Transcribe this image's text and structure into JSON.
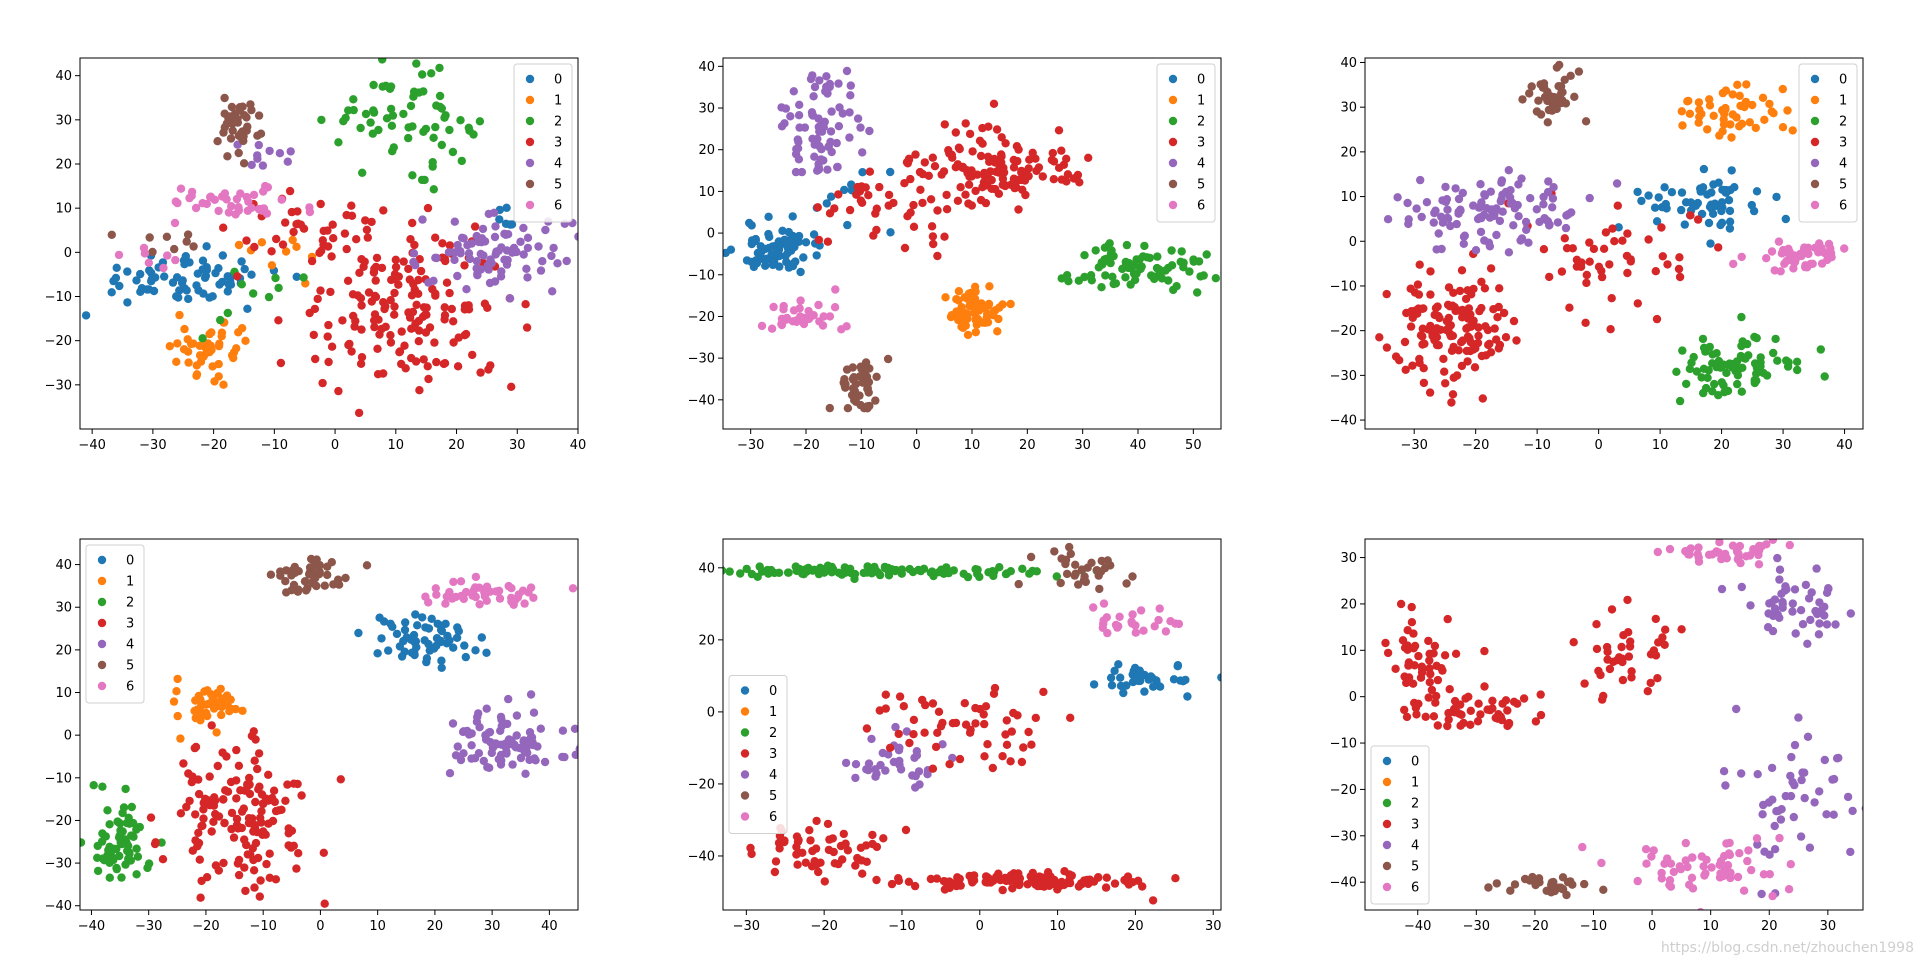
{
  "figure": {
    "colors": [
      "#1f77b4",
      "#ff7f0e",
      "#2ca02c",
      "#d62728",
      "#9467bd",
      "#8c564b",
      "#e377c2"
    ],
    "watermark": "https://blog.csdn.net/zhouchen1998"
  },
  "chart_data": [
    {
      "type": "scatter",
      "title": "",
      "legend": {
        "position": "top-right",
        "labels": [
          "0",
          "1",
          "2",
          "3",
          "4",
          "5",
          "6"
        ]
      },
      "xlim": [
        -42,
        40
      ],
      "ylim": [
        -40,
        44
      ],
      "xticks": [
        -40,
        -30,
        -20,
        -10,
        0,
        10,
        20,
        30,
        40
      ],
      "yticks": [
        -30,
        -20,
        -10,
        0,
        10,
        20,
        30,
        40
      ],
      "clusters": [
        {
          "label": "0",
          "cx": -25,
          "cy": -6,
          "sx": 8,
          "sy": 3,
          "n": 70
        },
        {
          "label": "0",
          "cx": 28,
          "cy": 8,
          "sx": 3,
          "sy": 2,
          "n": 6
        },
        {
          "label": "1",
          "cx": -20,
          "cy": -22,
          "sx": 3,
          "sy": 3,
          "n": 45
        },
        {
          "label": "1",
          "cx": -10,
          "cy": -2,
          "sx": 6,
          "sy": 6,
          "n": 10
        },
        {
          "label": "2",
          "cx": 11,
          "cy": 30,
          "sx": 6,
          "sy": 5,
          "n": 65
        },
        {
          "label": "2",
          "cx": -14,
          "cy": -8,
          "sx": 4,
          "sy": 4,
          "n": 10
        },
        {
          "label": "3",
          "cx": 12,
          "cy": -13,
          "sx": 9,
          "sy": 9,
          "n": 170
        },
        {
          "label": "3",
          "cx": -5,
          "cy": 6,
          "sx": 6,
          "sy": 5,
          "n": 35
        },
        {
          "label": "4",
          "cx": 26,
          "cy": 0,
          "sx": 6,
          "sy": 4,
          "n": 85
        },
        {
          "label": "4",
          "cx": -12,
          "cy": 22,
          "sx": 3,
          "sy": 2,
          "n": 10
        },
        {
          "label": "5",
          "cx": -16,
          "cy": 29,
          "sx": 2,
          "sy": 3,
          "n": 40
        },
        {
          "label": "5",
          "cx": -28,
          "cy": 3,
          "sx": 5,
          "sy": 3,
          "n": 8
        },
        {
          "label": "6",
          "cx": -17,
          "cy": 11,
          "sx": 6,
          "sy": 2,
          "n": 40
        },
        {
          "label": "6",
          "cx": -28,
          "cy": 1,
          "sx": 3,
          "sy": 3,
          "n": 8
        }
      ]
    },
    {
      "type": "scatter",
      "title": "",
      "legend": {
        "position": "top-right",
        "labels": [
          "0",
          "1",
          "2",
          "3",
          "4",
          "5",
          "6"
        ]
      },
      "xlim": [
        -35,
        55
      ],
      "ylim": [
        -47,
        42
      ],
      "xticks": [
        -30,
        -20,
        -10,
        0,
        10,
        20,
        30,
        40,
        50
      ],
      "yticks": [
        -40,
        -30,
        -20,
        -10,
        0,
        10,
        20,
        30,
        40
      ],
      "clusters": [
        {
          "label": "0",
          "cx": -25,
          "cy": -4,
          "sx": 4,
          "sy": 3,
          "n": 75
        },
        {
          "label": "0",
          "cx": -12,
          "cy": 8,
          "sx": 4,
          "sy": 4,
          "n": 10
        },
        {
          "label": "1",
          "cx": 11,
          "cy": -19,
          "sx": 2.5,
          "sy": 3,
          "n": 60
        },
        {
          "label": "2",
          "cx": 41,
          "cy": -8,
          "sx": 6,
          "sy": 3,
          "n": 80
        },
        {
          "label": "3",
          "cx": 14,
          "cy": 15,
          "sx": 7,
          "sy": 5,
          "n": 130
        },
        {
          "label": "3",
          "cx": -6,
          "cy": 5,
          "sx": 6,
          "sy": 6,
          "n": 40
        },
        {
          "label": "4",
          "cx": -18,
          "cy": 25,
          "sx": 4,
          "sy": 7,
          "n": 75
        },
        {
          "label": "5",
          "cx": -10,
          "cy": -36,
          "sx": 2,
          "sy": 3,
          "n": 40
        },
        {
          "label": "6",
          "cx": -20,
          "cy": -20,
          "sx": 4,
          "sy": 2,
          "n": 35
        }
      ]
    },
    {
      "type": "scatter",
      "title": "",
      "legend": {
        "position": "top-right",
        "labels": [
          "0",
          "1",
          "2",
          "3",
          "4",
          "5",
          "6"
        ]
      },
      "xlim": [
        -38,
        43
      ],
      "ylim": [
        -42,
        41
      ],
      "xticks": [
        -30,
        -20,
        -10,
        0,
        10,
        20,
        30,
        40
      ],
      "yticks": [
        -40,
        -30,
        -20,
        -10,
        0,
        10,
        20,
        30,
        40
      ],
      "clusters": [
        {
          "label": "0",
          "cx": 16,
          "cy": 8,
          "sx": 5,
          "sy": 3,
          "n": 60
        },
        {
          "label": "1",
          "cx": 21,
          "cy": 29,
          "sx": 4,
          "sy": 3,
          "n": 50
        },
        {
          "label": "2",
          "cx": 22,
          "cy": -29,
          "sx": 5,
          "sy": 4,
          "n": 80
        },
        {
          "label": "3",
          "cx": -24,
          "cy": -20,
          "sx": 5,
          "sy": 7,
          "n": 140
        },
        {
          "label": "3",
          "cx": 0,
          "cy": -2,
          "sx": 9,
          "sy": 8,
          "n": 50
        },
        {
          "label": "4",
          "cx": -18,
          "cy": 7,
          "sx": 8,
          "sy": 4,
          "n": 110
        },
        {
          "label": "5",
          "cx": -7,
          "cy": 33,
          "sx": 2.5,
          "sy": 3,
          "n": 40
        },
        {
          "label": "6",
          "cx": 32,
          "cy": -3,
          "sx": 4,
          "sy": 1.5,
          "n": 50
        }
      ]
    },
    {
      "type": "scatter",
      "title": "",
      "legend": {
        "position": "top-left",
        "labels": [
          "0",
          "1",
          "2",
          "3",
          "4",
          "5",
          "6"
        ]
      },
      "xlim": [
        -42,
        45
      ],
      "ylim": [
        -41,
        46
      ],
      "xticks": [
        -40,
        -30,
        -20,
        -10,
        0,
        10,
        20,
        30,
        40
      ],
      "yticks": [
        -40,
        -30,
        -20,
        -10,
        0,
        10,
        20,
        30,
        40
      ],
      "clusters": [
        {
          "label": "0",
          "cx": 18,
          "cy": 22,
          "sx": 5,
          "sy": 3,
          "n": 60
        },
        {
          "label": "1",
          "cx": -19,
          "cy": 7,
          "sx": 3,
          "sy": 2.5,
          "n": 45
        },
        {
          "label": "2",
          "cx": -35,
          "cy": -25,
          "sx": 2.5,
          "sy": 5,
          "n": 65
        },
        {
          "label": "3",
          "cx": -14,
          "cy": -18,
          "sx": 6,
          "sy": 9,
          "n": 150
        },
        {
          "label": "4",
          "cx": 33,
          "cy": -2,
          "sx": 5,
          "sy": 4,
          "n": 90
        },
        {
          "label": "5",
          "cx": -2,
          "cy": 37,
          "sx": 4,
          "sy": 2,
          "n": 45
        },
        {
          "label": "6",
          "cx": 29,
          "cy": 33,
          "sx": 5,
          "sy": 1.5,
          "n": 45
        }
      ]
    },
    {
      "type": "scatter",
      "title": "",
      "legend": {
        "position": "center-left",
        "labels": [
          "0",
          "1",
          "2",
          "3",
          "4",
          "5",
          "6"
        ]
      },
      "xlim": [
        -33,
        31
      ],
      "ylim": [
        -55,
        48
      ],
      "xticks": [
        -30,
        -20,
        -10,
        0,
        10,
        20,
        30
      ],
      "yticks": [
        -40,
        -20,
        0,
        20,
        40
      ],
      "clusters": [
        {
          "label": "2",
          "cx": -12,
          "cy": 39,
          "sx": 12,
          "sy": 0.8,
          "n": 110
        },
        {
          "label": "5",
          "cx": 13,
          "cy": 40,
          "sx": 3,
          "sy": 3,
          "n": 30
        },
        {
          "label": "0",
          "cx": 22,
          "cy": 9,
          "sx": 4,
          "sy": 2,
          "n": 35
        },
        {
          "label": "6",
          "cx": 20,
          "cy": 25,
          "sx": 3,
          "sy": 2,
          "n": 25
        },
        {
          "label": "3",
          "cx": 5,
          "cy": -47,
          "sx": 9,
          "sy": 1.2,
          "n": 110
        },
        {
          "label": "3",
          "cx": -20,
          "cy": -38,
          "sx": 4,
          "sy": 5,
          "n": 55
        },
        {
          "label": "4",
          "cx": -12,
          "cy": -14,
          "sx": 4,
          "sy": 4,
          "n": 35
        },
        {
          "label": "3",
          "cx": -2,
          "cy": -5,
          "sx": 7,
          "sy": 6,
          "n": 55
        }
      ]
    },
    {
      "type": "scatter",
      "title": "",
      "legend": {
        "position": "bottom-left",
        "labels": [
          "0",
          "1",
          "2",
          "3",
          "4",
          "5",
          "6"
        ]
      },
      "xlim": [
        -49,
        36
      ],
      "ylim": [
        -46,
        34
      ],
      "xticks": [
        -40,
        -30,
        -20,
        -10,
        0,
        10,
        20,
        30
      ],
      "yticks": [
        -40,
        -30,
        -20,
        -10,
        0,
        10,
        20,
        30
      ],
      "clusters": [
        {
          "label": "3",
          "cx": -40,
          "cy": 7,
          "sx": 3,
          "sy": 5,
          "n": 50
        },
        {
          "label": "3",
          "cx": -30,
          "cy": -3,
          "sx": 6,
          "sy": 2,
          "n": 50
        },
        {
          "label": "4",
          "cx": 25,
          "cy": 20,
          "sx": 4,
          "sy": 5,
          "n": 50
        },
        {
          "label": "4",
          "cx": 22,
          "cy": -20,
          "sx": 6,
          "sy": 8,
          "n": 50
        },
        {
          "label": "6",
          "cx": 10,
          "cy": -36,
          "sx": 9,
          "sy": 3,
          "n": 60
        },
        {
          "label": "5",
          "cx": -18,
          "cy": -41,
          "sx": 4,
          "sy": 1,
          "n": 30
        },
        {
          "label": "6",
          "cx": 12,
          "cy": 31,
          "sx": 5,
          "sy": 1,
          "n": 40
        },
        {
          "label": "3",
          "cx": -4,
          "cy": 10,
          "sx": 4,
          "sy": 5,
          "n": 40
        }
      ]
    }
  ]
}
